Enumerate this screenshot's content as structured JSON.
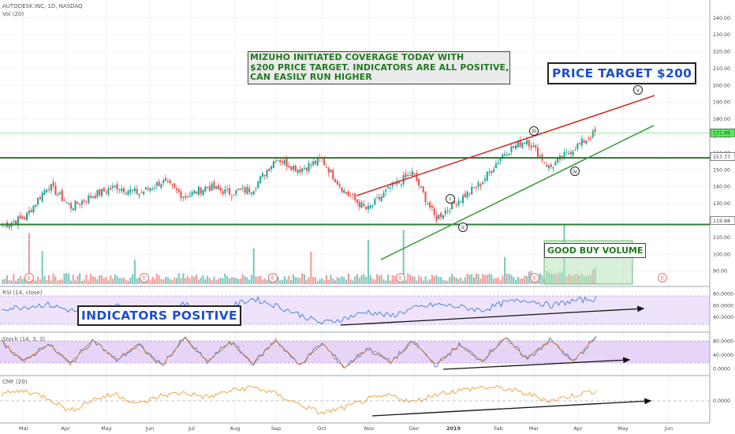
{
  "header": {
    "symbol_line": "AUTODESK INC, 1D, NASDAQ",
    "volume_label": "Vol (20)"
  },
  "annotations": {
    "mizuho_lines": [
      "MIZUHO INITIATED COVERAGE TODAY WITH",
      "$200 PRICE TARGET. INDICATORS ARE ALL POSITIVE,",
      "CAN EASILY RUN HIGHER"
    ],
    "price_target": "PRICE TARGET $200",
    "indicators": "INDICATORS POSITIVE",
    "good_buy_volume": "GOOD BUY VOLUME",
    "wave_labels": [
      "i",
      "ii",
      "iii",
      "iv",
      "v"
    ],
    "earnings_marker": "E"
  },
  "colors": {
    "up_candle": "#26a69a",
    "down_candle": "#ef5350",
    "support_line": "#2e7d32",
    "red_trend": "#d32f2f",
    "green_trend": "#43a047",
    "indicator_bg": "#efe3fb",
    "rsi_line": "#3b7dd8",
    "cmf_line": "#f39c34",
    "stoch_k": "#3b7dd8",
    "stoch_d": "#e67e22",
    "current_price_badge": "#55ee55"
  },
  "chart_data": [
    {
      "type": "candlestick",
      "title": "AUTODESK INC, 1D, NASDAQ",
      "x_tick_labels": [
        "Mar",
        "Apr",
        "May",
        "Jun",
        "Jul",
        "Aug",
        "Sep",
        "Oct",
        "Nov",
        "Dec",
        "2019",
        "Feb",
        "Mar",
        "Apr",
        "May",
        "Jun"
      ],
      "y_tick_labels": [
        "240.00",
        "230.00",
        "220.00",
        "210.00",
        "200.00",
        "190.00",
        "180.00",
        "170.00",
        "160.00",
        "150.00",
        "140.00",
        "130.00",
        "120.00",
        "110.00",
        "100.00",
        "90.00"
      ],
      "ylim": [
        86,
        244
      ],
      "price_labels": [
        {
          "value": 171.88,
          "label": "171.88",
          "color": "#55ee55"
        },
        {
          "value": 157.77,
          "label": "157.77",
          "color": "#ffffff"
        },
        {
          "value": 119.88,
          "label": "119.88",
          "color": "#ffffff"
        }
      ],
      "horizontal_levels": [
        157.77,
        119.88
      ],
      "waypoints": [
        {
          "month": "Mar",
          "close": 117
        },
        {
          "month": "Mar",
          "close": 122
        },
        {
          "month": "Mar",
          "close": 141
        },
        {
          "month": "Apr",
          "close": 128
        },
        {
          "month": "May",
          "close": 135
        },
        {
          "month": "May",
          "close": 140
        },
        {
          "month": "Jun",
          "close": 136
        },
        {
          "month": "Jun",
          "close": 143
        },
        {
          "month": "Jul",
          "close": 134
        },
        {
          "month": "Jul",
          "close": 140
        },
        {
          "month": "Aug",
          "close": 136
        },
        {
          "month": "Aug",
          "close": 139
        },
        {
          "month": "Sep",
          "close": 157
        },
        {
          "month": "Sep",
          "close": 150
        },
        {
          "month": "Oct",
          "close": 156
        },
        {
          "month": "Oct",
          "close": 137
        },
        {
          "month": "Nov",
          "close": 126
        },
        {
          "month": "Nov",
          "close": 139
        },
        {
          "month": "Dec",
          "close": 148
        },
        {
          "month": "Dec",
          "close": 121
        },
        {
          "month": "2019",
          "close": 132
        },
        {
          "month": "2019",
          "close": 142
        },
        {
          "month": "Feb",
          "close": 160
        },
        {
          "month": "Mar",
          "close": 168
        },
        {
          "month": "Mar",
          "close": 151
        },
        {
          "month": "Apr",
          "close": 162
        },
        {
          "month": "Apr",
          "close": 171.88
        }
      ]
    },
    {
      "type": "bar",
      "name": "Vol (20)",
      "note": "volume histogram under price panel",
      "spikes_at_months": [
        "Mar",
        "Jun",
        "Sep",
        "Nov",
        "Feb",
        "Mar"
      ]
    },
    {
      "type": "line",
      "title": "RSI (14, close)",
      "y_tick_labels": [
        "80.0000",
        "60.0000",
        "40.0000"
      ],
      "ylim": [
        20,
        90
      ],
      "waypoints": [
        55,
        58,
        62,
        52,
        45,
        60,
        55,
        48,
        62,
        50,
        58,
        72,
        60,
        45,
        30,
        38,
        50,
        42,
        55,
        62,
        58,
        52,
        65,
        70,
        60,
        68,
        72
      ]
    },
    {
      "type": "line",
      "title": "Stoch (14, 3, 3)",
      "y_tick_labels": [
        "80.0000",
        "40.0000",
        "0.0000"
      ],
      "ylim": [
        -10,
        100
      ],
      "waypoints": [
        80,
        20,
        75,
        15,
        85,
        25,
        70,
        10,
        90,
        20,
        80,
        15,
        85,
        10,
        75,
        5,
        60,
        20,
        80,
        10,
        70,
        25,
        90,
        30,
        85,
        20,
        95
      ]
    },
    {
      "type": "line",
      "title": "CMF (20)",
      "y_tick_labels": [
        "0.0000"
      ],
      "ylim": [
        -0.3,
        0.3
      ],
      "waypoints": [
        0.1,
        0.15,
        0.05,
        -0.15,
        0.02,
        0.1,
        -0.05,
        0.08,
        0.12,
        0.05,
        0.15,
        0.2,
        0.1,
        -0.05,
        -0.18,
        -0.1,
        0.02,
        0.08,
        -0.02,
        0.1,
        0.15,
        0.2,
        0.18,
        0.1,
        0.0,
        0.08,
        0.15
      ]
    }
  ]
}
